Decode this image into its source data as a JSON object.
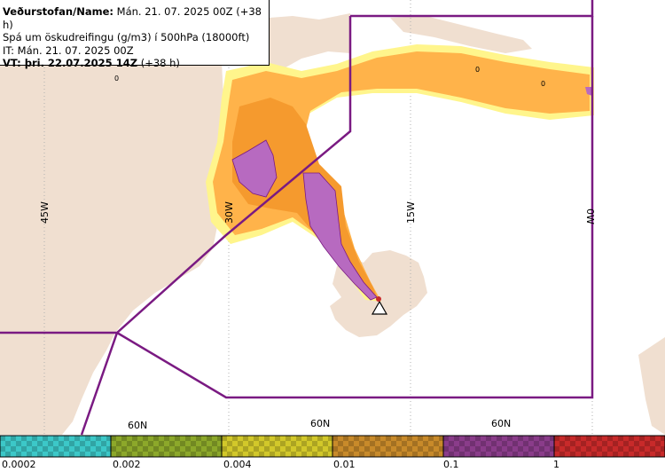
{
  "info": {
    "line1_label": "Veðurstofan/Name:",
    "line1_value": " Mán. 21. 07. 2025 00Z (+38 h)",
    "line2": "Spá um öskudreifingu (g/m3) í 500hPa (18000ft)",
    "line3": "IT: Mán. 21. 07. 2025 00Z",
    "line4_label": "VT: þri. 22.07.2025 14Z",
    "line4_value": " (+38 h)"
  },
  "grid_labels": {
    "lon_45": "45W",
    "lon_30": "30W",
    "lon_15": "15W",
    "lon_0": "0W",
    "lat_a": "60N",
    "lat_b": "60N",
    "lat_c": "60N"
  },
  "zero_markers": [
    "0",
    "0",
    "0"
  ],
  "legend": {
    "labels": [
      "0.0002",
      "0.002",
      "0.004",
      "0.01",
      "0.1",
      "1"
    ],
    "colors": [
      "#3cc8c8",
      "#8ca82a",
      "#d2c82a",
      "#c88a2a",
      "#8a3c8a",
      "#c82a2a"
    ]
  },
  "colors": {
    "land": "#f0dfd0",
    "sea": "#ffffff",
    "ash_light": "#fff58c",
    "ash_orange": "#ffb34a",
    "ash_dark_orange": "#f59a2e",
    "ash_purple": "#b76ac0",
    "boundary": "#7a1a82",
    "grid": "#b0b0b0"
  },
  "volcano_marker": "triangle-icon"
}
